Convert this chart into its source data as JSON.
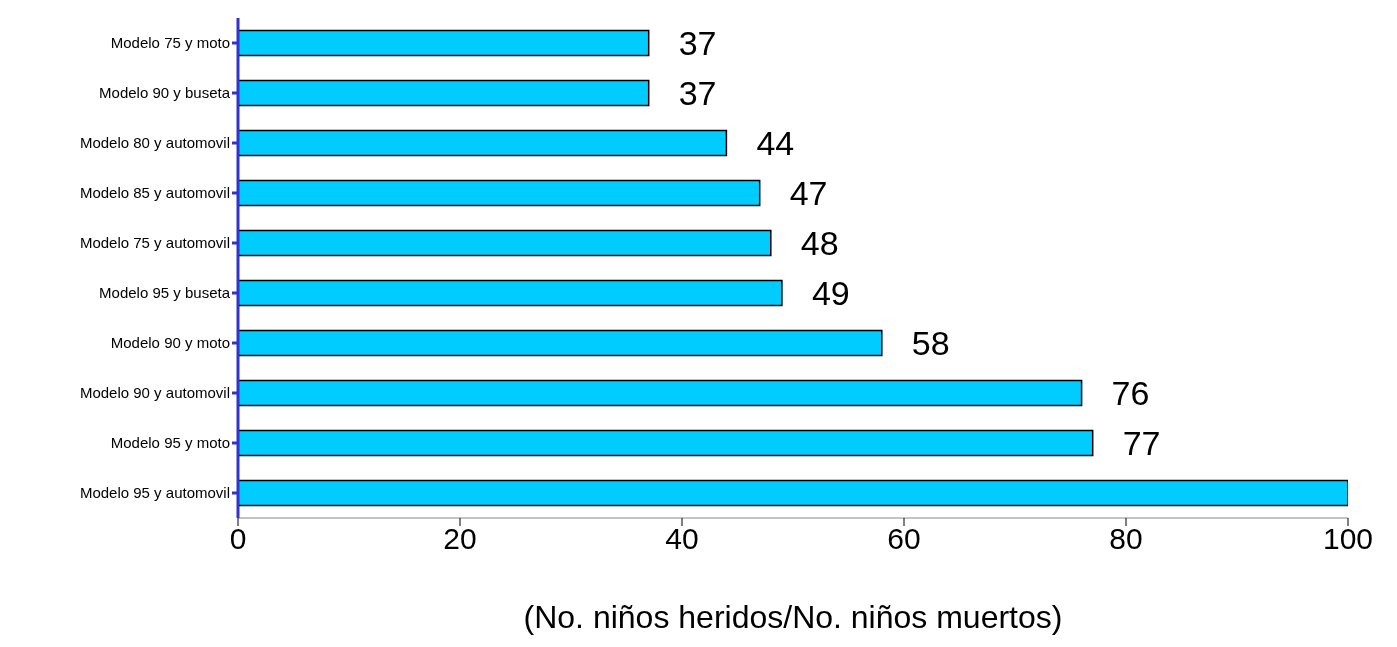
{
  "chart_data": {
    "type": "bar",
    "orientation": "horizontal",
    "xlabel": "(No. niños heridos/No. niños muertos)",
    "categories": [
      "Modelo 75 y moto",
      "Modelo 90 y buseta",
      "Modelo 80 y automovil",
      "Modelo 85 y automovil",
      "Modelo 75 y automovil",
      "Modelo 95 y buseta",
      "Modelo 90 y moto",
      "Modelo 90 y automovil",
      "Modelo 95 y moto",
      "Modelo 95 y automovil"
    ],
    "values": [
      37,
      37,
      44,
      47,
      48,
      49,
      58,
      76,
      77,
      100
    ],
    "value_labels": [
      "37",
      "37",
      "44",
      "47",
      "48",
      "49",
      "58",
      "76",
      "77",
      null
    ],
    "color": "#00ccff",
    "xlim": [
      0,
      100
    ],
    "xticks": [
      0,
      20,
      40,
      60,
      80,
      100
    ],
    "grid": false
  }
}
